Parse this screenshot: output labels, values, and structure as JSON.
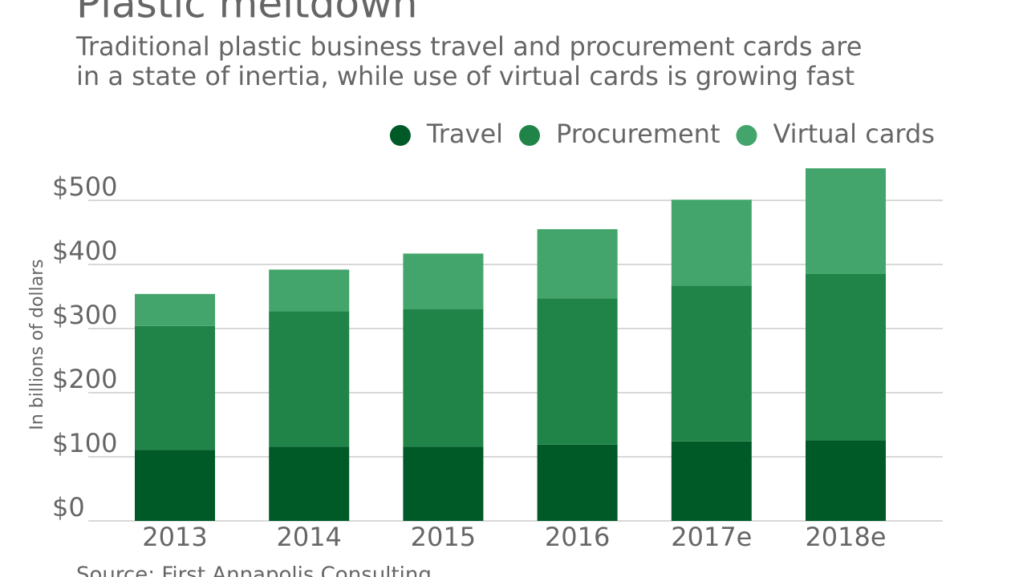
{
  "chart_data": {
    "type": "stacked_bar",
    "title": "Plastic meltdown",
    "subtitle": [
      "Traditional plastic business travel and procurement cards are",
      "in a state of inertia, while use of virtual cards is growing fast"
    ],
    "ylabel": "In billions of dollars",
    "source": "Source: First Annapolis Consulting",
    "categories": [
      "2013",
      "2014",
      "2015",
      "2016",
      "2017e",
      "2018e"
    ],
    "series": [
      {
        "name": "Travel",
        "color": "#005a27",
        "values": [
          111,
          116,
          116,
          119,
          124,
          126
        ]
      },
      {
        "name": "Procurement",
        "color": "#208448",
        "values": [
          193,
          211,
          214,
          228,
          243,
          259
        ]
      },
      {
        "name": "Virtual cards",
        "color": "#43a56b",
        "values": [
          50,
          65,
          87,
          108,
          134,
          165
        ]
      }
    ],
    "ylim": [
      0,
      550
    ],
    "yticks": [
      {
        "value": 0,
        "label": "$0"
      },
      {
        "value": 100,
        "label": "$100"
      },
      {
        "value": 200,
        "label": "$200"
      },
      {
        "value": 300,
        "label": "$300"
      },
      {
        "value": 400,
        "label": "$400"
      },
      {
        "value": 500,
        "label": "$500"
      }
    ],
    "grid": true,
    "legend": "top-right"
  }
}
